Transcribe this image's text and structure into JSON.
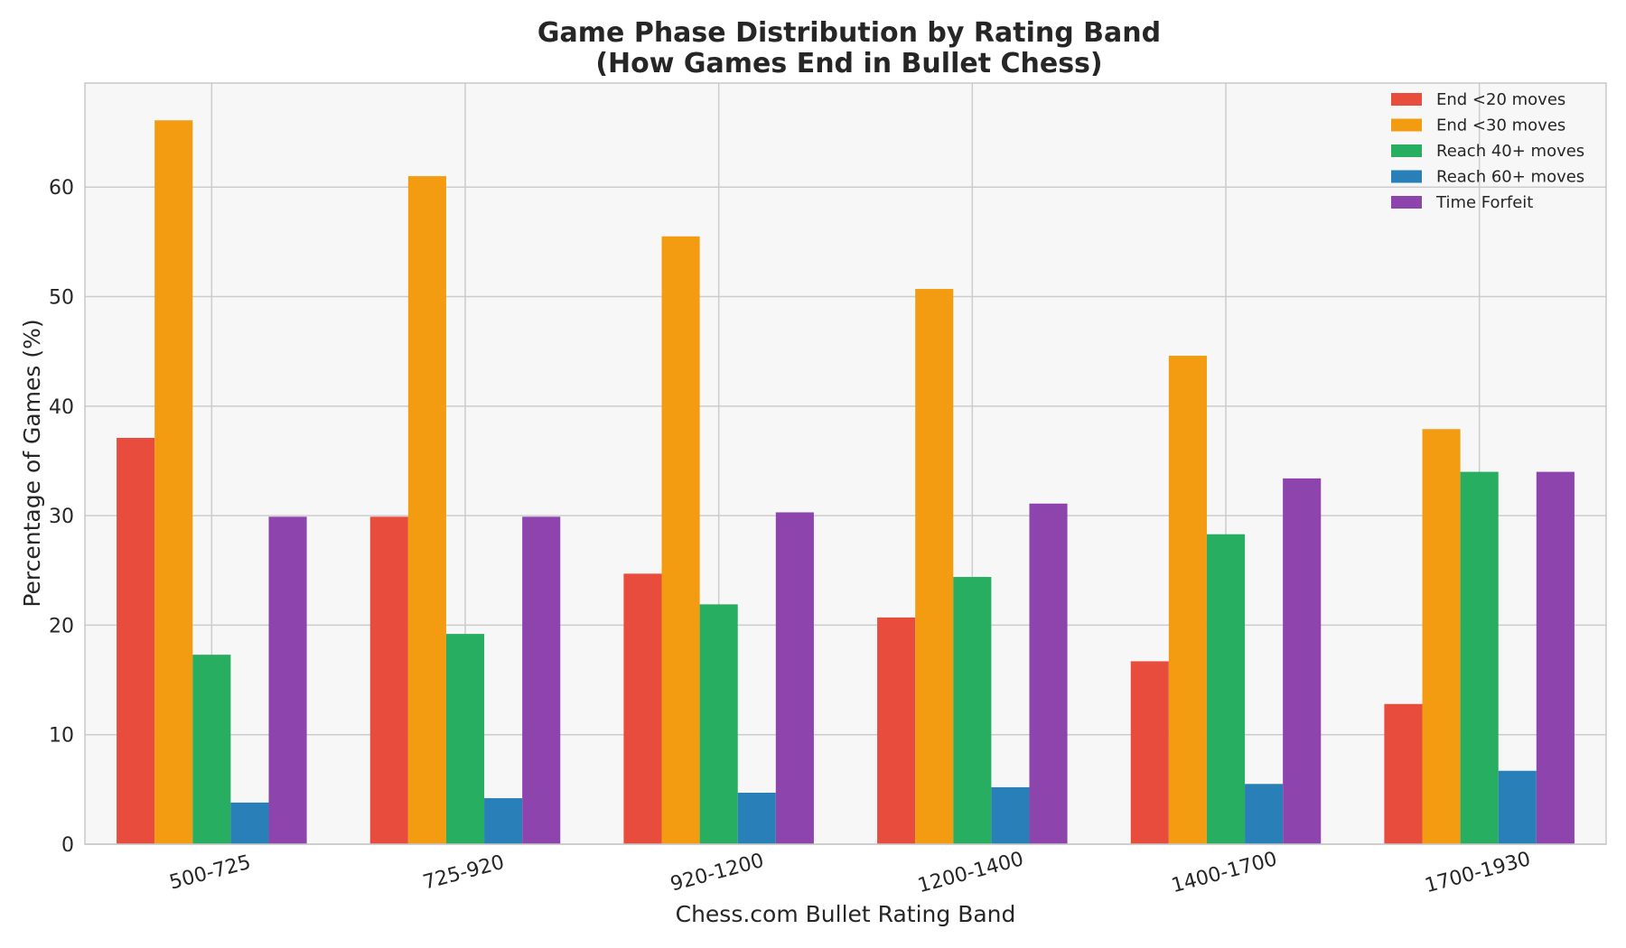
{
  "chart_data": {
    "type": "bar",
    "title_line1": "Game Phase Distribution by Rating Band",
    "title_line2": "(How Games End in Bullet Chess)",
    "xlabel": "Chess.com Bullet Rating Band",
    "ylabel": "Percentage of Games (%)",
    "ylim": [
      0,
      69.5
    ],
    "yticks": [
      0,
      10,
      20,
      30,
      40,
      50,
      60
    ],
    "grid": true,
    "legend_position": "top-right",
    "categories": [
      "500-725",
      "725-920",
      "920-1200",
      "1200-1400",
      "1400-1700",
      "1700-1930"
    ],
    "series": [
      {
        "name": "End <20 moves",
        "color": "#e74c3c",
        "values": [
          37.1,
          29.9,
          24.7,
          20.7,
          16.7,
          12.8
        ]
      },
      {
        "name": "End <30 moves",
        "color": "#f39c12",
        "values": [
          66.1,
          61.0,
          55.5,
          50.7,
          44.6,
          37.9
        ]
      },
      {
        "name": "Reach 40+ moves",
        "color": "#27ae60",
        "values": [
          17.3,
          19.2,
          21.9,
          24.4,
          28.3,
          34.0
        ]
      },
      {
        "name": "Reach 60+ moves",
        "color": "#2980b9",
        "values": [
          3.8,
          4.2,
          4.7,
          5.2,
          5.5,
          6.7
        ]
      },
      {
        "name": "Time Forfeit",
        "color": "#8e44ad",
        "values": [
          29.9,
          29.9,
          30.3,
          31.1,
          33.4,
          34.0
        ]
      }
    ]
  }
}
